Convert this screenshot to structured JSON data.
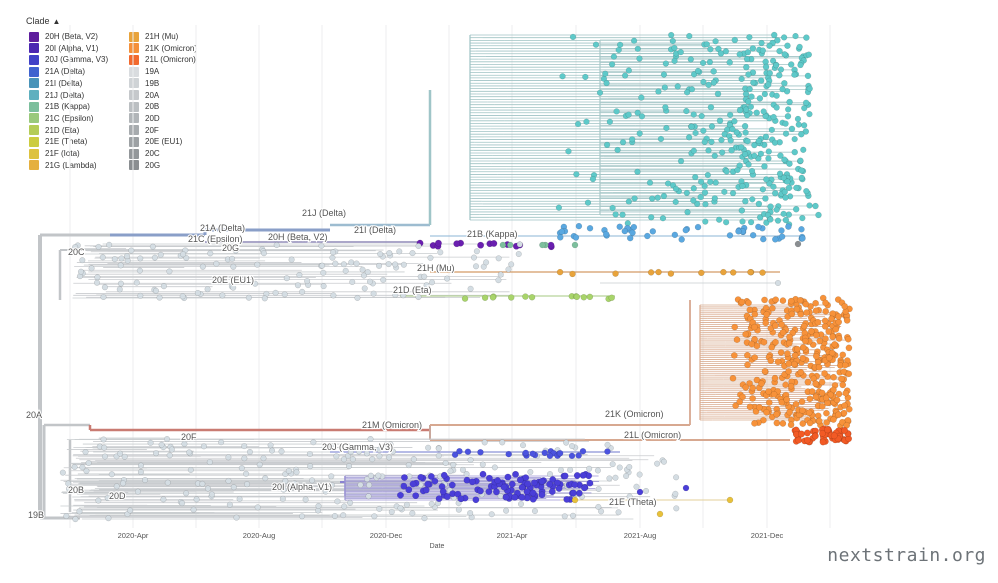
{
  "legend_title": "Clade",
  "legend_toggle_icon": "chevron-up-icon",
  "legend": [
    {
      "label": "20H (Beta, V2)",
      "color": "#5e1d9d"
    },
    {
      "label": "20I (Alpha, V1)",
      "color": "#4b26b1"
    },
    {
      "label": "20J (Gamma, V3)",
      "color": "#4041c7"
    },
    {
      "label": "21A (Delta)",
      "color": "#3f63cf"
    },
    {
      "label": "21I (Delta)",
      "color": "#4a94b9"
    },
    {
      "label": "21J (Delta)",
      "color": "#5fb0bf"
    },
    {
      "label": "21B (Kappa)",
      "color": "#7cbf9d"
    },
    {
      "label": "21C (Epsilon)",
      "color": "#99c97c"
    },
    {
      "label": "21D (Eta)",
      "color": "#b4cc57"
    },
    {
      "label": "21E (Theta)",
      "color": "#cccc3f"
    },
    {
      "label": "21F (Iota)",
      "color": "#ddc23f"
    },
    {
      "label": "21G (Lambda)",
      "color": "#e5b03f"
    },
    {
      "label": "21H (Mu)",
      "color": "#e8a33b"
    },
    {
      "label": "21K (Omicron)",
      "color": "#f4903a"
    },
    {
      "label": "21L (Omicron)",
      "color": "#f26a2f"
    },
    {
      "label": "19A",
      "color": "#d9dcdf"
    },
    {
      "label": "19B",
      "color": "#cfd3d6"
    },
    {
      "label": "20A",
      "color": "#c5c8cb"
    },
    {
      "label": "20B",
      "color": "#bbbfc2"
    },
    {
      "label": "20D",
      "color": "#b1b5b8"
    },
    {
      "label": "20F",
      "color": "#a7abae"
    },
    {
      "label": "20E (EU1)",
      "color": "#9da1a4"
    },
    {
      "label": "20C",
      "color": "#93979a"
    },
    {
      "label": "20G",
      "color": "#8a8e91"
    }
  ],
  "x_axis": {
    "ticks": [
      "2020-Apr",
      "2020-Aug",
      "2020-Dec",
      "2021-Apr",
      "2021-Aug",
      "2021-Dec"
    ],
    "label": "Date"
  },
  "clade_labels": [
    "21A (Delta)",
    "21J (Delta)",
    "21C (Epsilon)",
    "20H (Beta, V2)",
    "21I (Delta)",
    "21B (Kappa)",
    "20C",
    "20G",
    "21H (Mu)",
    "20E (EU1)",
    "21D (Eta)",
    "20A",
    "21M (Omicron)",
    "21K (Omicron)",
    "20F",
    "21L (Omicron)",
    "20J (Gamma, V3)",
    "20I (Alpha, V1)",
    "20B",
    "20D",
    "21E (Theta)",
    "19B"
  ],
  "colors": {
    "trunk": "#c2c5c8",
    "delta_21j": "#5ec9c9",
    "delta_21i": "#5aa8e0",
    "omicron_21k": "#f7923a",
    "omicron_21l": "#f25a25",
    "alpha": "#4a3ed8",
    "beta": "#6a1fb0",
    "gamma": "#4b53df",
    "mu": "#d39a66",
    "eta": "#a8d46a",
    "theta": "#e8c13a",
    "grey_tip": "#d4dde3",
    "omicron_branch": "#c97b72"
  },
  "footer": {
    "watermark": "nextstrain.org"
  }
}
